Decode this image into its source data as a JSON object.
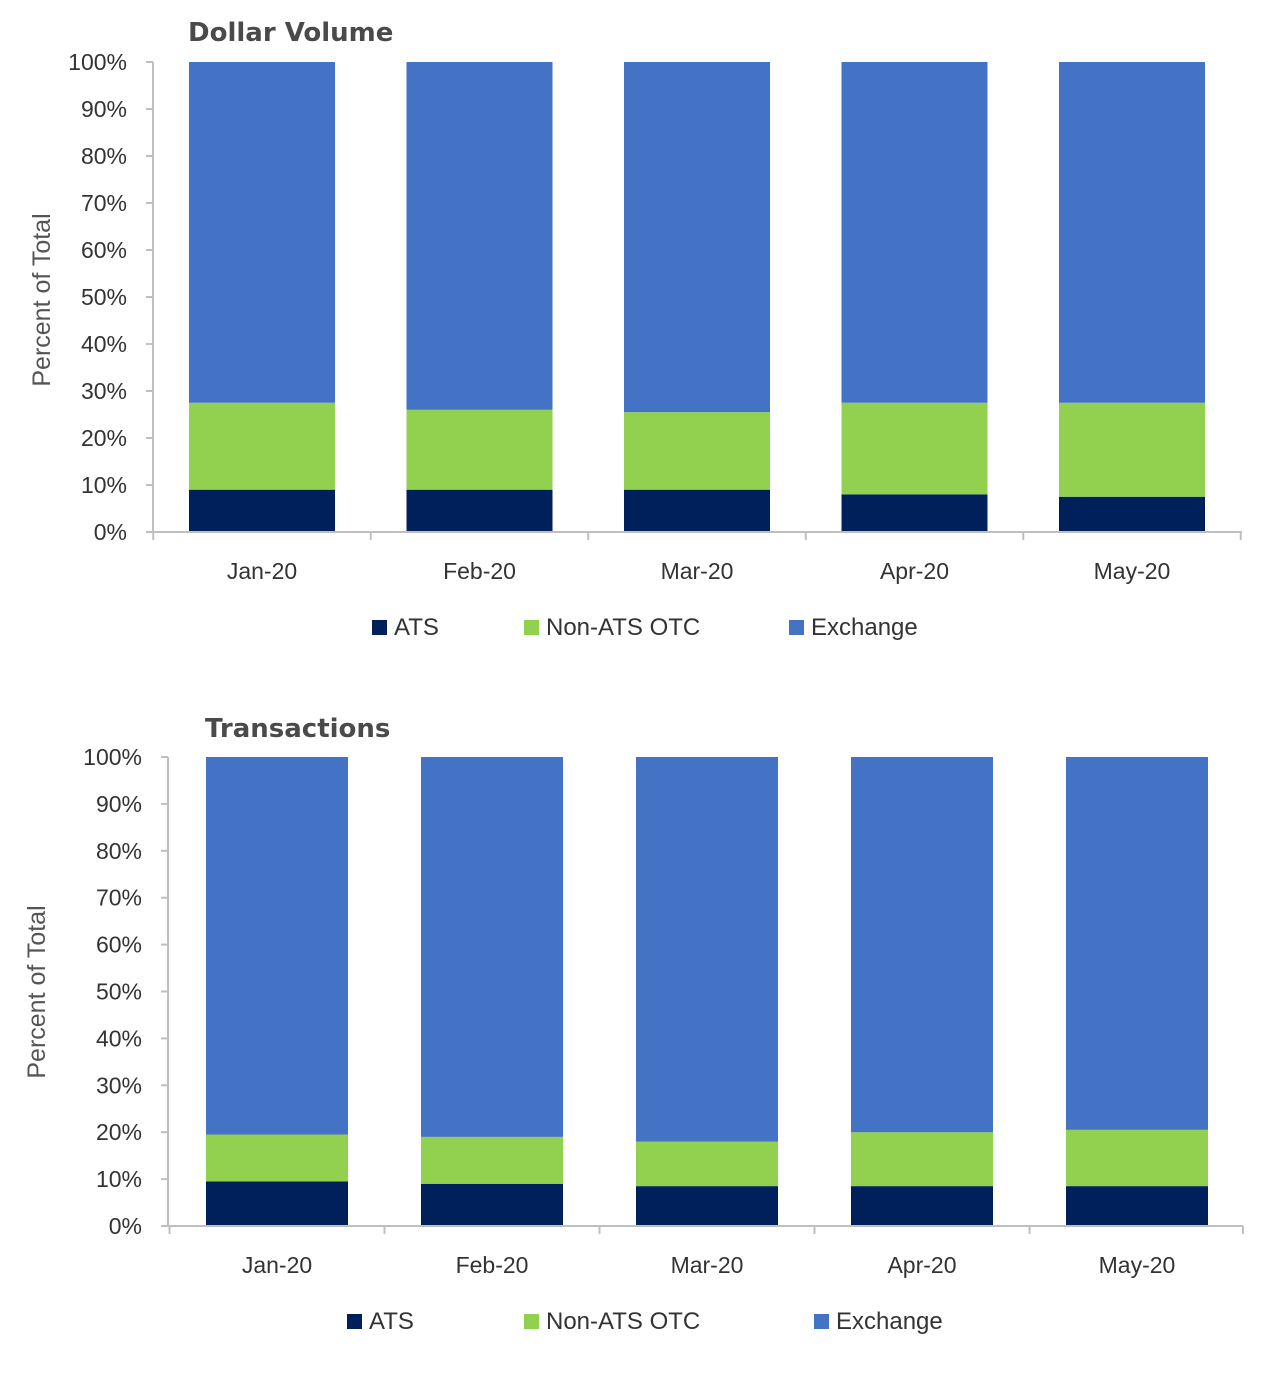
{
  "colors": {
    "ATS": "#00205b",
    "Non-ATS OTC": "#92d050",
    "Exchange": "#4472c4",
    "axis": "#bfbfbf"
  },
  "chart_data": [
    {
      "type": "bar",
      "stacked": true,
      "title": "Dollar Volume",
      "xlabel": "",
      "ylabel": "Percent of Total",
      "categories": [
        "Jan-20",
        "Feb-20",
        "Mar-20",
        "Apr-20",
        "May-20"
      ],
      "yticks": [
        "0%",
        "10%",
        "20%",
        "30%",
        "40%",
        "50%",
        "60%",
        "70%",
        "80%",
        "90%",
        "100%"
      ],
      "ylim": [
        0,
        100
      ],
      "grid": false,
      "legend": "bottom",
      "series": [
        {
          "name": "ATS",
          "values": [
            9,
            9,
            9,
            8,
            7.5
          ]
        },
        {
          "name": "Non-ATS OTC",
          "values": [
            18.5,
            17,
            16.5,
            19.5,
            20
          ]
        },
        {
          "name": "Exchange",
          "values": [
            72.5,
            74,
            74.5,
            72.5,
            72.5
          ]
        }
      ]
    },
    {
      "type": "bar",
      "stacked": true,
      "title": "Transactions",
      "xlabel": "",
      "ylabel": "Percent of Total",
      "categories": [
        "Jan-20",
        "Feb-20",
        "Mar-20",
        "Apr-20",
        "May-20"
      ],
      "yticks": [
        "0%",
        "10%",
        "20%",
        "30%",
        "40%",
        "50%",
        "60%",
        "70%",
        "80%",
        "90%",
        "100%"
      ],
      "ylim": [
        0,
        100
      ],
      "grid": false,
      "legend": "bottom",
      "series": [
        {
          "name": "ATS",
          "values": [
            9.5,
            9,
            8.5,
            8.5,
            8.5
          ]
        },
        {
          "name": "Non-ATS OTC",
          "values": [
            10,
            10,
            9.5,
            11.5,
            12
          ]
        },
        {
          "name": "Exchange",
          "values": [
            80.5,
            81,
            82,
            80,
            79.5
          ]
        }
      ]
    }
  ]
}
